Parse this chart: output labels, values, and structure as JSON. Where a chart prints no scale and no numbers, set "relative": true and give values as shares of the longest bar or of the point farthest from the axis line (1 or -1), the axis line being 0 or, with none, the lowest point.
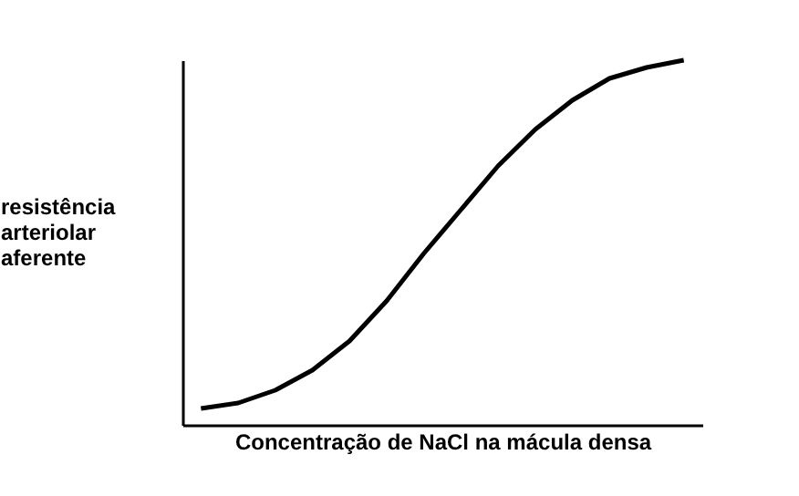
{
  "chart_data": {
    "type": "line",
    "relative": true,
    "xlabel": "Concentração de NaCl na mácula densa",
    "ylabel": "resistência arteriolar aferente",
    "color": "#000000",
    "grid": false,
    "marker": "none",
    "line_style": "solid",
    "tick_labels": false,
    "categories": [
      null,
      null,
      null,
      null,
      null,
      null,
      null,
      null,
      null,
      null,
      null,
      null,
      null,
      null
    ],
    "values": [
      0.045,
      0.06,
      0.095,
      0.15,
      0.23,
      0.34,
      0.47,
      0.59,
      0.71,
      0.81,
      0.89,
      0.95,
      0.98,
      1.0
    ]
  }
}
